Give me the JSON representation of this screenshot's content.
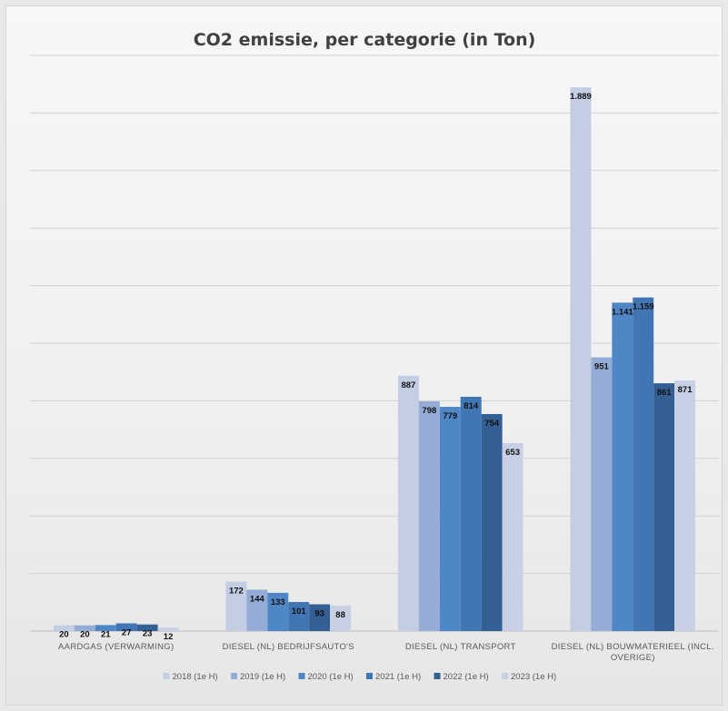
{
  "chart_data": {
    "type": "bar",
    "title": "CO2 emissie, per categorie (in Ton)",
    "categories": [
      "AARDGAS (VERWARMING)",
      "DIESEL (NL) BEDRIJFSAUTO'S",
      "DIESEL (NL) TRANSPORT",
      "DIESEL (NL) BOUWMATERIEEL (INCL. OVERIGE)"
    ],
    "category_lines": [
      [
        "AARDGAS (VERWARMING)"
      ],
      [
        "DIESEL (NL) BEDRIJFSAUTO'S"
      ],
      [
        "DIESEL (NL) TRANSPORT"
      ],
      [
        "DIESEL (NL) BOUWMATERIEEL (INCL.",
        "OVERIGE)"
      ]
    ],
    "series": [
      {
        "name": "2018 (1e H)",
        "color": "#c3cde4",
        "values": [
          20,
          172,
          887,
          1889
        ],
        "labels": [
          "20",
          "172",
          "887",
          "1.889"
        ]
      },
      {
        "name": "2019 (1e H)",
        "color": "#94acd6",
        "values": [
          20,
          144,
          798,
          951
        ],
        "labels": [
          "20",
          "144",
          "798",
          "951"
        ]
      },
      {
        "name": "2020 (1e H)",
        "color": "#4f86c6",
        "values": [
          21,
          133,
          779,
          1141
        ],
        "labels": [
          "21",
          "133",
          "779",
          "1.141"
        ]
      },
      {
        "name": "2021 (1e H)",
        "color": "#4275b3",
        "values": [
          27,
          101,
          814,
          1159
        ],
        "labels": [
          "27",
          "101",
          "814",
          "1.159"
        ]
      },
      {
        "name": "2022 (1e H)",
        "color": "#345f93",
        "values": [
          23,
          93,
          754,
          861
        ],
        "labels": [
          "23",
          "93",
          "754",
          "861"
        ]
      },
      {
        "name": "2023 (1e H)",
        "color": "#c7d0e4",
        "values": [
          12,
          88,
          653,
          871
        ],
        "labels": [
          "12",
          "88",
          "653",
          "871"
        ]
      }
    ],
    "ylim": [
      0,
      2000
    ],
    "y_gridline_step": 200,
    "y_tick_labels_shown": false,
    "legend_position": "bottom",
    "gridlines": true
  }
}
